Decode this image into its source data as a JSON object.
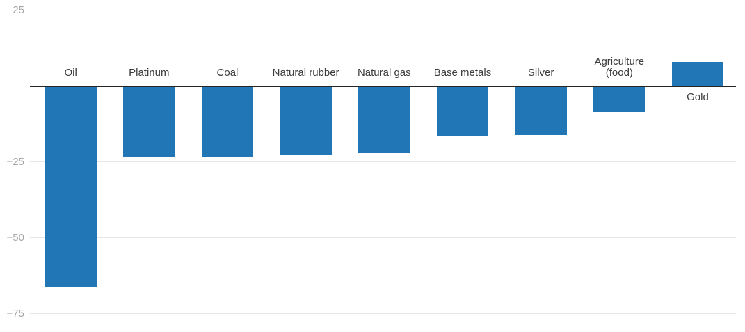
{
  "chart_data": {
    "type": "bar",
    "title": "",
    "xlabel": "",
    "ylabel": "",
    "categories": [
      "Oil",
      "Platinum",
      "Coal",
      "Natural rubber",
      "Natural gas",
      "Base metals",
      "Silver",
      "Agriculture (food)",
      "Gold"
    ],
    "category_lines": [
      [
        "Oil"
      ],
      [
        "Platinum"
      ],
      [
        "Coal"
      ],
      [
        "Natural rubber"
      ],
      [
        "Natural gas"
      ],
      [
        "Base metals"
      ],
      [
        "Silver"
      ],
      [
        "Agriculture",
        "(food)"
      ],
      [
        "Gold"
      ]
    ],
    "values": [
      -66,
      -23.5,
      -23.5,
      -22.5,
      -22,
      -16.5,
      -16,
      -8.5,
      8
    ],
    "ylim": [
      -81,
      27
    ],
    "yticks": [
      {
        "value": 25,
        "label": "25"
      },
      {
        "value": -25,
        "label": "−25"
      },
      {
        "value": -50,
        "label": "−50"
      },
      {
        "value": -75,
        "label": "−75"
      }
    ],
    "grid": true,
    "legend": false,
    "colors": {
      "bar": "#2176b5",
      "grid": "#e6e6e6",
      "zero_line": "#262626",
      "tick_label": "#a6a6a6",
      "category_label": "#3c3c3c",
      "background": "#ffffff"
    }
  }
}
